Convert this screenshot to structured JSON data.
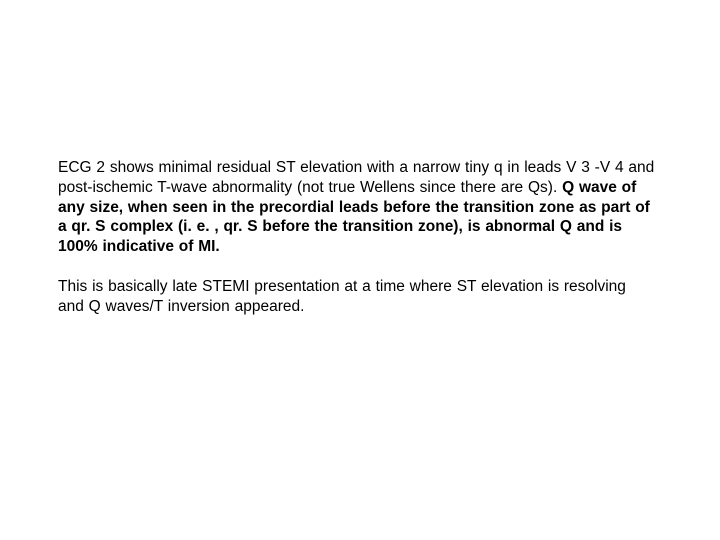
{
  "document": {
    "background_color": "#ffffff",
    "text_color": "#000000",
    "font_family": "Arial",
    "font_size_pt": 12,
    "line_height": 1.28,
    "paragraphs": [
      {
        "segments": [
          {
            "text": "ECG 2 shows minimal residual ST elevation with a narrow tiny q in leads V 3 -V 4 and post-ischemic T-wave abnormality (not true Wellens since there are Qs). ",
            "bold": false
          },
          {
            "text": "Q wave of any size, when seen in the precordial leads before the transition zone as part of a qr. S complex (i. e. , qr. S before the transition zone), is abnormal Q and is 100% indicative of MI.",
            "bold": true
          }
        ]
      },
      {
        "segments": [
          {
            "text": "This is basically late STEMI presentation at a time where ST elevation is resolving and Q waves/T inversion appeared.",
            "bold": false
          }
        ]
      }
    ]
  }
}
